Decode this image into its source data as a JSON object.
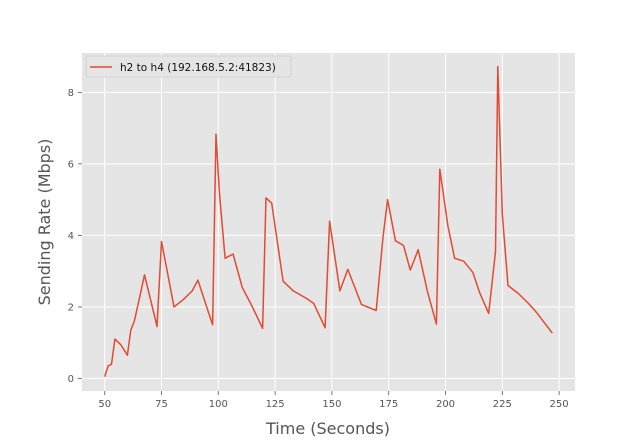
{
  "chart_data": {
    "type": "line",
    "title": "",
    "xlabel": "Time (Seconds)",
    "ylabel": "Sending Rate (Mbps)",
    "xlim": [
      40,
      257
    ],
    "ylim": [
      -0.35,
      9.1
    ],
    "xticks": [
      50,
      75,
      100,
      125,
      150,
      175,
      200,
      225,
      250
    ],
    "yticks": [
      0,
      2,
      4,
      6,
      8
    ],
    "grid": true,
    "legend": "top-left",
    "colors": {
      "background": "#e5e5e5",
      "grid": "#ffffff",
      "series": "#e24a33"
    },
    "series": [
      {
        "name": "h2 to h4 (192.168.5.2:41823)",
        "x": [
          50,
          51.5,
          53,
          54.5,
          57,
          60,
          61.5,
          63,
          65.5,
          67.5,
          71.5,
          73,
          75,
          77.5,
          80.5,
          84.5,
          88.5,
          91,
          97.5,
          99,
          100.5,
          103,
          106.5,
          110.5,
          115,
          119.5,
          121,
          123.5,
          128.5,
          133,
          138.5,
          142,
          147,
          149,
          153.5,
          157,
          163,
          169.5,
          172.5,
          174.5,
          178,
          181.5,
          184.5,
          188,
          192,
          196,
          197.5,
          201,
          204,
          208,
          212,
          215,
          219,
          222,
          223,
          225,
          227.5,
          232,
          236.5,
          240,
          247
        ],
        "y": [
          0.05,
          0.35,
          0.4,
          1.1,
          0.95,
          0.65,
          1.35,
          1.6,
          2.3,
          2.9,
          1.85,
          1.45,
          3.83,
          3.0,
          2.0,
          2.2,
          2.45,
          2.75,
          1.5,
          6.83,
          5.2,
          3.36,
          3.48,
          2.55,
          2.0,
          1.4,
          5.05,
          4.9,
          2.72,
          2.45,
          2.25,
          2.1,
          1.42,
          4.4,
          2.45,
          3.05,
          2.07,
          1.9,
          3.95,
          5.0,
          3.85,
          3.72,
          3.03,
          3.6,
          2.45,
          1.52,
          5.85,
          4.28,
          3.36,
          3.28,
          2.97,
          2.4,
          1.82,
          3.55,
          8.72,
          4.6,
          2.6,
          2.38,
          2.1,
          1.85,
          1.27
        ]
      }
    ]
  }
}
